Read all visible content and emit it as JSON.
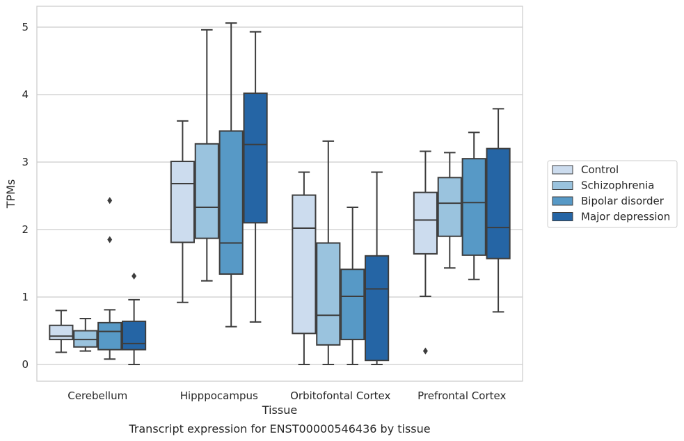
{
  "chart_data": {
    "type": "box",
    "caption": "Transcript expression for ENST00000546436 by tissue",
    "xlabel": "Tissue",
    "ylabel": "TPMs",
    "ylim": [
      -0.25,
      5.3
    ],
    "yticks": [
      0,
      1,
      2,
      3,
      4,
      5
    ],
    "grid": "horizontal",
    "legend_position": "right",
    "categories": [
      "Cerebellum",
      "Hipppocampus",
      "Orbitofontal Cortex",
      "Prefrontal Cortex"
    ],
    "series": [
      {
        "name": "Control",
        "color": "#ccdcee",
        "boxes": [
          {
            "whislo": 0.18,
            "q1": 0.37,
            "med": 0.42,
            "q3": 0.58,
            "whishi": 0.8,
            "fliers": []
          },
          {
            "whislo": 0.92,
            "q1": 1.81,
            "med": 2.68,
            "q3": 3.01,
            "whishi": 3.61,
            "fliers": []
          },
          {
            "whislo": 0.0,
            "q1": 0.46,
            "med": 2.02,
            "q3": 2.51,
            "whishi": 2.85,
            "fliers": []
          },
          {
            "whislo": 1.01,
            "q1": 1.64,
            "med": 2.14,
            "q3": 2.55,
            "whishi": 3.16,
            "fliers": [
              0.2
            ]
          }
        ]
      },
      {
        "name": "Schizophrenia",
        "color": "#9ac3de",
        "boxes": [
          {
            "whislo": 0.2,
            "q1": 0.26,
            "med": 0.37,
            "q3": 0.5,
            "whishi": 0.68,
            "fliers": []
          },
          {
            "whislo": 1.24,
            "q1": 1.87,
            "med": 2.33,
            "q3": 3.27,
            "whishi": 4.96,
            "fliers": []
          },
          {
            "whislo": 0.0,
            "q1": 0.29,
            "med": 0.73,
            "q3": 1.8,
            "whishi": 3.31,
            "fliers": []
          },
          {
            "whislo": 1.43,
            "q1": 1.9,
            "med": 2.39,
            "q3": 2.77,
            "whishi": 3.14,
            "fliers": []
          }
        ]
      },
      {
        "name": "Bipolar disorder",
        "color": "#5799c6",
        "boxes": [
          {
            "whislo": 0.08,
            "q1": 0.22,
            "med": 0.49,
            "q3": 0.62,
            "whishi": 0.81,
            "fliers": [
              1.85,
              2.43
            ]
          },
          {
            "whislo": 0.56,
            "q1": 1.34,
            "med": 1.8,
            "q3": 3.46,
            "whishi": 5.06,
            "fliers": []
          },
          {
            "whislo": 0.0,
            "q1": 0.37,
            "med": 1.01,
            "q3": 1.41,
            "whishi": 2.33,
            "fliers": []
          },
          {
            "whislo": 1.26,
            "q1": 1.62,
            "med": 2.4,
            "q3": 3.05,
            "whishi": 3.44,
            "fliers": []
          }
        ]
      },
      {
        "name": "Major depression",
        "color": "#2565a5",
        "boxes": [
          {
            "whislo": 0.0,
            "q1": 0.22,
            "med": 0.31,
            "q3": 0.64,
            "whishi": 0.96,
            "fliers": [
              1.31
            ]
          },
          {
            "whislo": 0.63,
            "q1": 2.1,
            "med": 3.26,
            "q3": 4.02,
            "whishi": 4.93,
            "fliers": []
          },
          {
            "whislo": 0.0,
            "q1": 0.06,
            "med": 1.12,
            "q3": 1.61,
            "whishi": 2.85,
            "fliers": []
          },
          {
            "whislo": 0.78,
            "q1": 1.57,
            "med": 2.03,
            "q3": 3.2,
            "whishi": 3.79,
            "fliers": []
          }
        ]
      }
    ]
  }
}
